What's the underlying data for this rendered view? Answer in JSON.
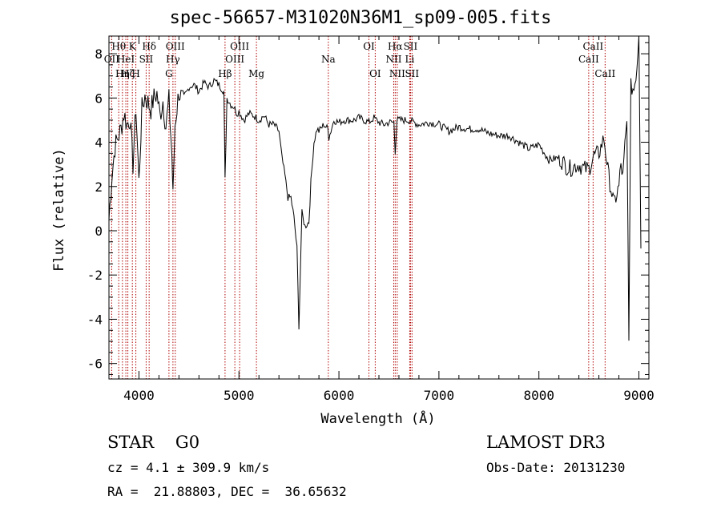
{
  "chart_data": {
    "type": "line",
    "title": "spec-56657-M31020N36M1_sp09-005.fits",
    "xlabel": "Wavelength (Å)",
    "ylabel": "Flux (relative)",
    "xlim": [
      3700,
      9100
    ],
    "ylim": [
      -6.7,
      8.8
    ],
    "x_ticks": [
      4000,
      5000,
      6000,
      7000,
      8000,
      9000
    ],
    "y_ticks": [
      -6,
      -4,
      -2,
      0,
      2,
      4,
      6,
      8
    ],
    "spectrum": {
      "x": [
        3700,
        3730,
        3760,
        3790,
        3820,
        3850,
        3880,
        3910,
        3940,
        3970,
        4000,
        4030,
        4060,
        4090,
        4120,
        4150,
        4180,
        4210,
        4240,
        4270,
        4300,
        4330,
        4340,
        4360,
        4400,
        4450,
        4500,
        4550,
        4600,
        4650,
        4700,
        4750,
        4800,
        4850,
        4861,
        4880,
        4920,
        4950,
        4980,
        5000,
        5050,
        5100,
        5150,
        5200,
        5250,
        5300,
        5350,
        5400,
        5430,
        5460,
        5490,
        5520,
        5550,
        5580,
        5600,
        5630,
        5660,
        5700,
        5720,
        5750,
        5780,
        5800,
        5850,
        5890,
        5900,
        5950,
        6000,
        6050,
        6100,
        6150,
        6200,
        6250,
        6300,
        6350,
        6400,
        6450,
        6500,
        6550,
        6563,
        6580,
        6600,
        6650,
        6700,
        6750,
        6800,
        6900,
        7000,
        7100,
        7200,
        7300,
        7400,
        7500,
        7600,
        7700,
        7800,
        7900,
        8000,
        8100,
        8200,
        8300,
        8400,
        8450,
        8500,
        8550,
        8600,
        8650,
        8700,
        8750,
        8800,
        8820,
        8840,
        8860,
        8880,
        8900,
        8920,
        8950,
        8980,
        9000,
        9020
      ],
      "y": [
        0.5,
        2.5,
        3.8,
        4.2,
        4.6,
        5.3,
        4.8,
        5.1,
        3.0,
        5.6,
        2.2,
        5.5,
        6.1,
        5.8,
        5.5,
        6.0,
        6.2,
        5.2,
        5.9,
        4.7,
        5.9,
        3.4,
        1.5,
        4.8,
        6.3,
        5.7,
        6.5,
        6.6,
        6.3,
        6.7,
        6.5,
        6.8,
        6.6,
        6.3,
        2.3,
        6.0,
        5.7,
        5.6,
        5.3,
        5.4,
        5.0,
        5.3,
        5.2,
        5.0,
        5.2,
        4.8,
        4.8,
        4.5,
        3.3,
        2.5,
        1.5,
        1.5,
        0.6,
        -0.8,
        -4.3,
        0.8,
        0.2,
        0.4,
        2.2,
        4.0,
        4.6,
        4.5,
        4.8,
        4.6,
        4.2,
        5.0,
        4.9,
        5.0,
        5.0,
        5.0,
        5.1,
        5.0,
        4.9,
        5.1,
        4.9,
        4.8,
        4.9,
        4.9,
        3.6,
        5.0,
        5.0,
        5.0,
        5.0,
        4.9,
        4.8,
        4.9,
        4.8,
        4.5,
        4.7,
        4.6,
        4.6,
        4.4,
        4.3,
        4.3,
        4.0,
        3.7,
        3.9,
        3.2,
        3.3,
        2.8,
        3.0,
        2.8,
        2.8,
        3.4,
        3.5,
        4.2,
        2.4,
        1.2,
        2.0,
        3.0,
        2.4,
        3.8,
        4.8,
        -4.6,
        6.5,
        6.4,
        7.4,
        9.0,
        -0.8
      ]
    },
    "lines": [
      {
        "wave": 3727,
        "label": "OII",
        "row": 2
      },
      {
        "wave": 3798,
        "label": "Hθ",
        "row": 1
      },
      {
        "wave": 3835,
        "label": "Hη",
        "row": 3
      },
      {
        "wave": 3869,
        "label": "HeI",
        "row": 2
      },
      {
        "wave": 3889,
        "label": "Hζ",
        "row": 3
      },
      {
        "wave": 3934,
        "label": "K",
        "row": 1
      },
      {
        "wave": 3969,
        "label": "H",
        "row": 3
      },
      {
        "wave": 4072,
        "label": "SII",
        "row": 2
      },
      {
        "wave": 4102,
        "label": "Hδ",
        "row": 1
      },
      {
        "wave": 4300,
        "label": "G",
        "row": 3
      },
      {
        "wave": 4340,
        "label": "Hγ",
        "row": 2
      },
      {
        "wave": 4363,
        "label": "OIII",
        "row": 1
      },
      {
        "wave": 4861,
        "label": "Hβ",
        "row": 3
      },
      {
        "wave": 4959,
        "label": "OIII",
        "row": 2
      },
      {
        "wave": 5007,
        "label": "OIII",
        "row": 1
      },
      {
        "wave": 5175,
        "label": "Mg",
        "row": 3
      },
      {
        "wave": 5894,
        "label": "Na",
        "row": 2
      },
      {
        "wave": 6300,
        "label": "OI",
        "row": 1
      },
      {
        "wave": 6363,
        "label": "OI",
        "row": 3
      },
      {
        "wave": 6548,
        "label": "NII",
        "row": 2
      },
      {
        "wave": 6563,
        "label": "Hα",
        "row": 1
      },
      {
        "wave": 6583,
        "label": "NII",
        "row": 3
      },
      {
        "wave": 6708,
        "label": "Li",
        "row": 2
      },
      {
        "wave": 6716,
        "label": "SII",
        "row": 1
      },
      {
        "wave": 6731,
        "label": "SII",
        "row": 3
      },
      {
        "wave": 8498,
        "label": "CaII",
        "row": 2
      },
      {
        "wave": 8542,
        "label": "CaII",
        "row": 1
      },
      {
        "wave": 8662,
        "label": "CaII",
        "row": 3
      }
    ],
    "colors": {
      "spectrum": "#000000",
      "lines": "#b00000",
      "axes": "#000000"
    }
  },
  "info": {
    "object_class": "STAR    G0",
    "survey": "LAMOST DR3",
    "cz": "cz = 4.1 ± 309.9 km/s",
    "obs_date": "Obs-Date: 20131230",
    "radec": "RA =  21.88803, DEC =  36.65632"
  }
}
